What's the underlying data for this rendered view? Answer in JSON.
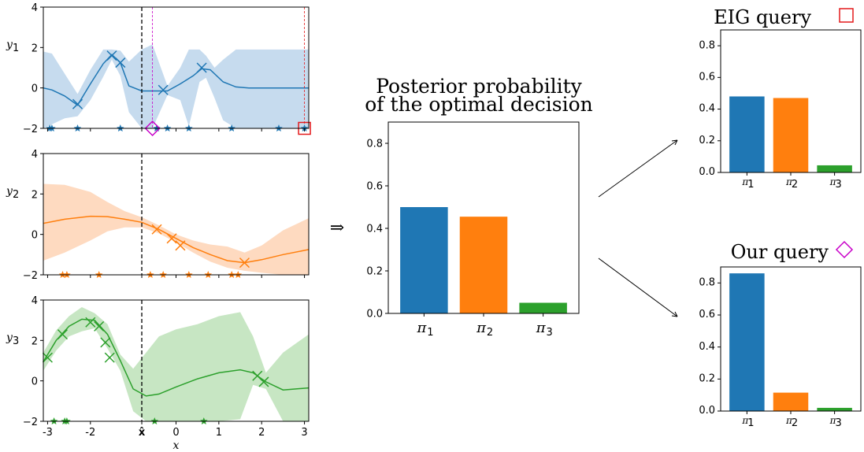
{
  "figure": {
    "implies_symbol": "⇒",
    "middle_title_line1": "Posterior probability",
    "middle_title_line2": "of the optimal decision",
    "top_right_title": "EIG query",
    "bottom_right_title": "Our query"
  },
  "colors": {
    "blue": "#1f77b4",
    "orange": "#ff7f0e",
    "green": "#2ca02c",
    "blue_band": "#c6dbee",
    "orange_band": "#fedac0",
    "green_band": "#c7e6c3",
    "eig_marker": "#e41a1c",
    "our_marker": "#c800c8"
  },
  "chart_data": [
    {
      "type": "line",
      "id": "gp_y1",
      "ylabel": "y",
      "ylabel_sub": "1",
      "xlim": [
        -3.1,
        3.1
      ],
      "ylim": [
        -2,
        4
      ],
      "yticks": [
        -2,
        0,
        2,
        4
      ],
      "mean": [
        [
          -3.1,
          0
        ],
        [
          -2.9,
          -0.1
        ],
        [
          -2.6,
          -0.4
        ],
        [
          -2.3,
          -0.85
        ],
        [
          -2.0,
          0.2
        ],
        [
          -1.7,
          1.2
        ],
        [
          -1.5,
          1.65
        ],
        [
          -1.3,
          1.25
        ],
        [
          -1.1,
          0.1
        ],
        [
          -0.8,
          -0.15
        ],
        [
          -0.5,
          -0.15
        ],
        [
          -0.2,
          -0.15
        ],
        [
          0.1,
          0.2
        ],
        [
          0.4,
          0.6
        ],
        [
          0.6,
          0.95
        ],
        [
          0.8,
          0.9
        ],
        [
          1.1,
          0.3
        ],
        [
          1.4,
          0.05
        ],
        [
          1.7,
          0
        ],
        [
          2.2,
          0
        ],
        [
          3.1,
          0
        ]
      ],
      "upper": [
        [
          -3.1,
          1.8
        ],
        [
          -2.9,
          1.7
        ],
        [
          -2.6,
          0.7
        ],
        [
          -2.3,
          -0.3
        ],
        [
          -2.0,
          0.9
        ],
        [
          -1.7,
          1.9
        ],
        [
          -1.5,
          1.9
        ],
        [
          -1.3,
          1.85
        ],
        [
          -1.1,
          1.3
        ],
        [
          -0.8,
          1.9
        ],
        [
          -0.55,
          2.15
        ],
        [
          -0.2,
          0.1
        ],
        [
          0.1,
          1.0
        ],
        [
          0.3,
          1.9
        ],
        [
          0.55,
          1.9
        ],
        [
          0.7,
          1.6
        ],
        [
          0.9,
          1.0
        ],
        [
          1.1,
          1.4
        ],
        [
          1.4,
          1.9
        ],
        [
          1.8,
          1.9
        ],
        [
          3.1,
          1.9
        ]
      ],
      "lower": [
        [
          -3.1,
          -2
        ],
        [
          -2.9,
          -1.8
        ],
        [
          -2.6,
          -1.5
        ],
        [
          -2.3,
          -1.4
        ],
        [
          -2.0,
          -0.6
        ],
        [
          -1.7,
          0.55
        ],
        [
          -1.5,
          1.4
        ],
        [
          -1.3,
          0.6
        ],
        [
          -1.1,
          -1.2
        ],
        [
          -0.8,
          -2
        ],
        [
          -0.55,
          -2
        ],
        [
          -0.2,
          -0.35
        ],
        [
          0.1,
          -0.6
        ],
        [
          0.3,
          -1.9
        ],
        [
          0.55,
          0.3
        ],
        [
          0.7,
          0.5
        ],
        [
          0.9,
          -0.5
        ],
        [
          1.1,
          -1.6
        ],
        [
          1.4,
          -2
        ],
        [
          1.8,
          -2
        ],
        [
          3.1,
          -2
        ]
      ],
      "observations": [
        [
          -2.3,
          -0.8
        ],
        [
          -1.5,
          1.6
        ],
        [
          -1.3,
          1.25
        ],
        [
          -0.3,
          -0.1
        ],
        [
          0.6,
          1.0
        ]
      ],
      "star_x": [
        -2.95,
        -2.9,
        -2.3,
        -1.3,
        -0.45,
        -0.2,
        0.3,
        1.3,
        2.4,
        3.0
      ],
      "eig_query_x": 3.0,
      "our_query_x": -0.55,
      "dashed_x": -0.8
    },
    {
      "type": "line",
      "id": "gp_y2",
      "ylabel": "y",
      "ylabel_sub": "2",
      "xlim": [
        -3.1,
        3.1
      ],
      "ylim": [
        -2,
        4
      ],
      "yticks": [
        -2,
        0,
        2,
        4
      ],
      "mean": [
        [
          -3.1,
          0.55
        ],
        [
          -2.6,
          0.75
        ],
        [
          -2.0,
          0.9
        ],
        [
          -1.6,
          0.88
        ],
        [
          -1.2,
          0.75
        ],
        [
          -0.8,
          0.6
        ],
        [
          -0.4,
          0.25
        ],
        [
          0,
          -0.2
        ],
        [
          0.4,
          -0.65
        ],
        [
          0.8,
          -1.0
        ],
        [
          1.2,
          -1.3
        ],
        [
          1.6,
          -1.4
        ],
        [
          2.0,
          -1.25
        ],
        [
          2.5,
          -1.0
        ],
        [
          3.1,
          -0.75
        ]
      ],
      "upper": [
        [
          -3.1,
          2.5
        ],
        [
          -2.6,
          2.45
        ],
        [
          -2.0,
          2.1
        ],
        [
          -1.6,
          1.6
        ],
        [
          -1.2,
          1.15
        ],
        [
          -0.8,
          0.85
        ],
        [
          -0.4,
          0.45
        ],
        [
          0,
          0
        ],
        [
          0.4,
          -0.3
        ],
        [
          0.8,
          -0.5
        ],
        [
          1.2,
          -0.6
        ],
        [
          1.6,
          -0.9
        ],
        [
          2.0,
          -0.55
        ],
        [
          2.5,
          0.2
        ],
        [
          3.1,
          0.8
        ]
      ],
      "lower": [
        [
          -3.1,
          -1.3
        ],
        [
          -2.6,
          -0.9
        ],
        [
          -2.0,
          -0.3
        ],
        [
          -1.6,
          0.15
        ],
        [
          -1.2,
          0.35
        ],
        [
          -0.8,
          0.35
        ],
        [
          -0.4,
          0.05
        ],
        [
          0,
          -0.4
        ],
        [
          0.4,
          -0.9
        ],
        [
          0.8,
          -1.35
        ],
        [
          1.2,
          -1.65
        ],
        [
          1.6,
          -1.8
        ],
        [
          2.0,
          -1.9
        ],
        [
          2.5,
          -2
        ],
        [
          3.1,
          -2
        ]
      ],
      "observations": [
        [
          -0.45,
          0.25
        ],
        [
          -0.1,
          -0.2
        ],
        [
          0.1,
          -0.55
        ],
        [
          1.6,
          -1.4
        ]
      ],
      "star_x": [
        -2.65,
        -2.55,
        -1.8,
        -0.6,
        -0.3,
        0.3,
        0.75,
        1.3,
        1.45
      ]
    },
    {
      "type": "line",
      "id": "gp_y3",
      "ylabel": "y",
      "ylabel_sub": "3",
      "xlabel": "x",
      "xlim": [
        -3.1,
        3.1
      ],
      "ylim": [
        -2,
        4
      ],
      "yticks": [
        -2,
        0,
        2,
        4
      ],
      "xticks": [
        "-3",
        "-2",
        "x̂",
        "0",
        "1",
        "2",
        "3"
      ],
      "xtick_values": [
        -3,
        -2,
        -0.8,
        0,
        1,
        2,
        3
      ],
      "mean": [
        [
          -3.1,
          0.95
        ],
        [
          -2.8,
          2.0
        ],
        [
          -2.5,
          2.7
        ],
        [
          -2.2,
          3.05
        ],
        [
          -1.9,
          3.0
        ],
        [
          -1.6,
          2.3
        ],
        [
          -1.3,
          1.0
        ],
        [
          -1.0,
          -0.4
        ],
        [
          -0.7,
          -0.75
        ],
        [
          -0.4,
          -0.65
        ],
        [
          0,
          -0.3
        ],
        [
          0.5,
          0.1
        ],
        [
          1.0,
          0.4
        ],
        [
          1.5,
          0.55
        ],
        [
          1.8,
          0.4
        ],
        [
          2.1,
          -0.05
        ],
        [
          2.5,
          -0.45
        ],
        [
          3.1,
          -0.35
        ]
      ],
      "upper": [
        [
          -3.1,
          1.4
        ],
        [
          -2.8,
          2.5
        ],
        [
          -2.5,
          3.2
        ],
        [
          -2.2,
          3.65
        ],
        [
          -1.9,
          3.35
        ],
        [
          -1.6,
          2.8
        ],
        [
          -1.3,
          1.3
        ],
        [
          -1.0,
          0.6
        ],
        [
          -0.7,
          1.4
        ],
        [
          -0.4,
          2.2
        ],
        [
          0,
          2.55
        ],
        [
          0.5,
          2.8
        ],
        [
          1.0,
          3.2
        ],
        [
          1.5,
          3.4
        ],
        [
          1.8,
          2.2
        ],
        [
          2.1,
          0.4
        ],
        [
          2.5,
          1.4
        ],
        [
          3.1,
          2.3
        ]
      ],
      "lower": [
        [
          -3.1,
          0.5
        ],
        [
          -2.8,
          1.5
        ],
        [
          -2.5,
          2.2
        ],
        [
          -2.2,
          2.45
        ],
        [
          -1.9,
          2.6
        ],
        [
          -1.6,
          1.6
        ],
        [
          -1.3,
          0.5
        ],
        [
          -1.0,
          -1.5
        ],
        [
          -0.7,
          -2
        ],
        [
          -0.4,
          -2
        ],
        [
          0,
          -2
        ],
        [
          0.5,
          -2
        ],
        [
          1.0,
          -2
        ],
        [
          1.5,
          -1.9
        ],
        [
          1.8,
          -0.2
        ],
        [
          2.1,
          -0.4
        ],
        [
          2.5,
          -2
        ],
        [
          3.1,
          -2
        ]
      ],
      "observations": [
        [
          -3.0,
          1.15
        ],
        [
          -2.65,
          2.3
        ],
        [
          -2.0,
          2.9
        ],
        [
          -1.8,
          2.7
        ],
        [
          -1.65,
          1.9
        ],
        [
          -1.55,
          1.15
        ],
        [
          1.9,
          0.25
        ],
        [
          2.05,
          -0.05
        ]
      ],
      "star_x": [
        -2.85,
        -2.6,
        -2.55,
        -0.5,
        0.65
      ]
    },
    {
      "type": "bar",
      "id": "posterior",
      "categories": [
        "π1",
        "π2",
        "π3"
      ],
      "values": [
        0.5,
        0.455,
        0.05
      ],
      "ylim": [
        0,
        0.9
      ],
      "yticks": [
        "0.0",
        "0.2",
        "0.4",
        "0.6",
        "0.8"
      ]
    },
    {
      "type": "bar",
      "id": "eig_query",
      "categories": [
        "π1",
        "π2",
        "π3"
      ],
      "values": [
        0.48,
        0.47,
        0.045
      ],
      "ylim": [
        0,
        0.9
      ],
      "yticks": [
        "0.0",
        "0.2",
        "0.4",
        "0.6",
        "0.8"
      ]
    },
    {
      "type": "bar",
      "id": "our_query",
      "categories": [
        "π1",
        "π2",
        "π3"
      ],
      "values": [
        0.86,
        0.115,
        0.02
      ],
      "ylim": [
        0,
        0.9
      ],
      "yticks": [
        "0.0",
        "0.2",
        "0.4",
        "0.6",
        "0.8"
      ]
    }
  ]
}
